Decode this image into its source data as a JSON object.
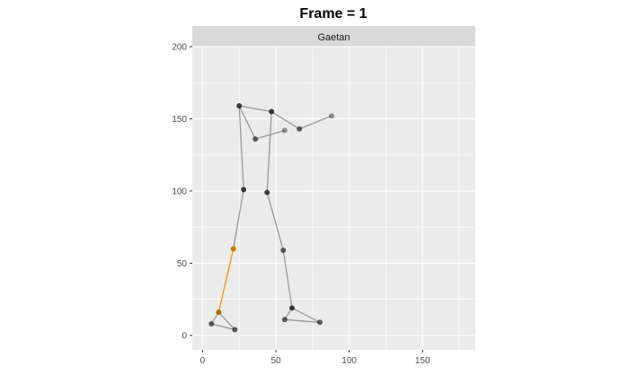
{
  "chart_data": {
    "type": "scatter",
    "title": "Frame = 1",
    "facet_label": "Gaetan",
    "xlabel": "",
    "ylabel": "",
    "xlim": [
      -7,
      186
    ],
    "ylim": [
      -10,
      200
    ],
    "x_ticks": [
      0,
      50,
      100,
      150
    ],
    "y_ticks": [
      0,
      50,
      100,
      150,
      200
    ],
    "grid": true,
    "colors": {
      "panel": "#EBEBEB",
      "strip": "#D9D9D9",
      "gridline": "#FFFFFF",
      "point_dark": "#1f1f1f",
      "segment": "#999999",
      "highlight": "#F5A00A"
    },
    "points": [
      {
        "x": 25,
        "y": 159,
        "shade": 0.85
      },
      {
        "x": 47,
        "y": 155,
        "shade": 0.85
      },
      {
        "x": 36,
        "y": 136,
        "shade": 0.7
      },
      {
        "x": 56,
        "y": 142,
        "shade": 0.45
      },
      {
        "x": 66,
        "y": 143,
        "shade": 0.7
      },
      {
        "x": 88,
        "y": 152,
        "shade": 0.45
      },
      {
        "x": 28,
        "y": 101,
        "shade": 0.85
      },
      {
        "x": 44,
        "y": 99,
        "shade": 0.85
      },
      {
        "x": 21,
        "y": 60,
        "shade": 0.6,
        "highlight": true
      },
      {
        "x": 55,
        "y": 59,
        "shade": 0.7
      },
      {
        "x": 11,
        "y": 16,
        "shade": 0.7,
        "highlight": true
      },
      {
        "x": 6,
        "y": 8,
        "shade": 0.7
      },
      {
        "x": 22,
        "y": 4,
        "shade": 0.7
      },
      {
        "x": 61,
        "y": 19,
        "shade": 0.85
      },
      {
        "x": 56,
        "y": 11,
        "shade": 0.7
      },
      {
        "x": 80,
        "y": 9,
        "shade": 0.7
      }
    ],
    "segments": [
      {
        "from": 0,
        "to": 1
      },
      {
        "from": 1,
        "to": 4
      },
      {
        "from": 4,
        "to": 5
      },
      {
        "from": 0,
        "to": 2
      },
      {
        "from": 2,
        "to": 3
      },
      {
        "from": 0,
        "to": 6
      },
      {
        "from": 1,
        "to": 7
      },
      {
        "from": 6,
        "to": 8
      },
      {
        "from": 7,
        "to": 9
      },
      {
        "from": 8,
        "to": 10,
        "highlight": true
      },
      {
        "from": 10,
        "to": 11
      },
      {
        "from": 11,
        "to": 12
      },
      {
        "from": 10,
        "to": 12
      },
      {
        "from": 9,
        "to": 13
      },
      {
        "from": 13,
        "to": 14
      },
      {
        "from": 14,
        "to": 15
      },
      {
        "from": 13,
        "to": 15
      }
    ]
  }
}
